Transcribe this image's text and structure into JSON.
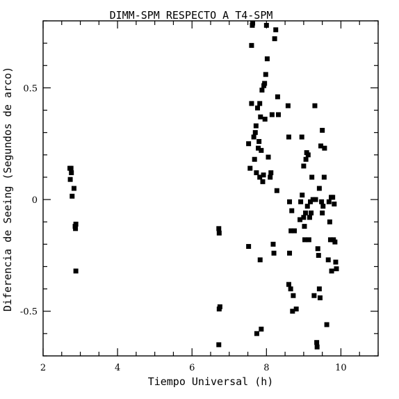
{
  "chart_data": {
    "type": "scatter",
    "title": "DIMM-SPM RESPECTO A T4-SPM",
    "xlabel": "Tiempo Universal (h)",
    "ylabel": "Diferencia de Seeing (Segundos de arco)",
    "xlim": [
      2,
      11
    ],
    "ylim": [
      -0.7,
      0.8
    ],
    "x_ticks": [
      2,
      4,
      6,
      8,
      10
    ],
    "x_tick_labels": [
      "2",
      "4",
      "6",
      "8",
      "10"
    ],
    "y_ticks": [
      -0.5,
      0,
      0.5
    ],
    "y_tick_labels": [
      "-0.5",
      "0",
      "0.5"
    ],
    "grid": false,
    "marker": "square",
    "color": "#000000",
    "points": [
      [
        2.72,
        0.14
      ],
      [
        2.75,
        0.14
      ],
      [
        2.73,
        0.09
      ],
      [
        2.76,
        0.12
      ],
      [
        2.83,
        0.05
      ],
      [
        2.78,
        0.015
      ],
      [
        2.88,
        -0.11
      ],
      [
        2.86,
        -0.12
      ],
      [
        2.87,
        -0.13
      ],
      [
        2.88,
        -0.32
      ],
      [
        6.72,
        -0.13
      ],
      [
        6.73,
        -0.15
      ],
      [
        6.75,
        -0.48
      ],
      [
        6.73,
        -0.49
      ],
      [
        6.72,
        -0.65
      ],
      [
        7.52,
        -0.21
      ],
      [
        7.52,
        0.25
      ],
      [
        7.56,
        0.14
      ],
      [
        7.6,
        0.43
      ],
      [
        7.6,
        0.69
      ],
      [
        7.62,
        0.78
      ],
      [
        7.63,
        0.79
      ],
      [
        7.66,
        0.28
      ],
      [
        7.68,
        0.18
      ],
      [
        7.7,
        0.3
      ],
      [
        7.72,
        0.33
      ],
      [
        7.73,
        0.12
      ],
      [
        7.74,
        -0.6
      ],
      [
        7.76,
        0.41
      ],
      [
        7.78,
        0.23
      ],
      [
        7.8,
        0.26
      ],
      [
        7.82,
        0.43
      ],
      [
        7.82,
        0.1
      ],
      [
        7.83,
        -0.27
      ],
      [
        7.84,
        0.37
      ],
      [
        7.86,
        -0.58
      ],
      [
        7.86,
        0.22
      ],
      [
        7.88,
        0.49
      ],
      [
        7.9,
        0.08
      ],
      [
        7.92,
        0.11
      ],
      [
        7.93,
        0.51
      ],
      [
        7.95,
        0.52
      ],
      [
        7.96,
        0.36
      ],
      [
        7.98,
        0.56
      ],
      [
        8.0,
        0.78
      ],
      [
        8.02,
        0.63
      ],
      [
        8.05,
        0.19
      ],
      [
        8.1,
        0.1
      ],
      [
        8.12,
        0.12
      ],
      [
        8.15,
        0.38
      ],
      [
        8.18,
        -0.2
      ],
      [
        8.2,
        -0.24
      ],
      [
        8.22,
        0.72
      ],
      [
        8.25,
        0.76
      ],
      [
        8.28,
        0.04
      ],
      [
        8.3,
        0.46
      ],
      [
        8.32,
        0.38
      ],
      [
        8.58,
        0.42
      ],
      [
        8.6,
        0.28
      ],
      [
        8.6,
        -0.38
      ],
      [
        8.62,
        -0.24
      ],
      [
        8.62,
        -0.01
      ],
      [
        8.65,
        -0.4
      ],
      [
        8.66,
        -0.14
      ],
      [
        8.68,
        -0.05
      ],
      [
        8.7,
        -0.5
      ],
      [
        8.72,
        -0.43
      ],
      [
        8.75,
        -0.14
      ],
      [
        8.8,
        -0.49
      ],
      [
        8.9,
        -0.09
      ],
      [
        8.92,
        -0.01
      ],
      [
        8.95,
        0.28
      ],
      [
        8.96,
        0.02
      ],
      [
        9.0,
        -0.08
      ],
      [
        9.0,
        0.15
      ],
      [
        9.02,
        -0.12
      ],
      [
        9.03,
        -0.18
      ],
      [
        9.05,
        -0.06
      ],
      [
        9.06,
        0.18
      ],
      [
        9.08,
        0.21
      ],
      [
        9.1,
        -0.03
      ],
      [
        9.12,
        0.2
      ],
      [
        9.14,
        -0.18
      ],
      [
        9.16,
        -0.08
      ],
      [
        9.18,
        -0.01
      ],
      [
        9.2,
        -0.06
      ],
      [
        9.22,
        0.1
      ],
      [
        9.25,
        0.0
      ],
      [
        9.28,
        -0.43
      ],
      [
        9.3,
        0.42
      ],
      [
        9.32,
        0.0
      ],
      [
        9.35,
        -0.64
      ],
      [
        9.36,
        -0.66
      ],
      [
        9.38,
        -0.22
      ],
      [
        9.4,
        -0.25
      ],
      [
        9.42,
        -0.4
      ],
      [
        9.42,
        0.05
      ],
      [
        9.44,
        -0.44
      ],
      [
        9.46,
        0.24
      ],
      [
        9.48,
        -0.01
      ],
      [
        9.5,
        -0.06
      ],
      [
        9.5,
        0.31
      ],
      [
        9.52,
        -0.03
      ],
      [
        9.55,
        0.1
      ],
      [
        9.56,
        0.23
      ],
      [
        9.62,
        -0.56
      ],
      [
        9.66,
        -0.27
      ],
      [
        9.68,
        -0.01
      ],
      [
        9.7,
        -0.1
      ],
      [
        9.72,
        -0.18
      ],
      [
        9.74,
        0.01
      ],
      [
        9.75,
        -0.32
      ],
      [
        9.78,
        0.01
      ],
      [
        9.8,
        -0.18
      ],
      [
        9.82,
        -0.02
      ],
      [
        9.84,
        -0.19
      ],
      [
        9.86,
        -0.28
      ],
      [
        9.88,
        -0.31
      ]
    ]
  }
}
